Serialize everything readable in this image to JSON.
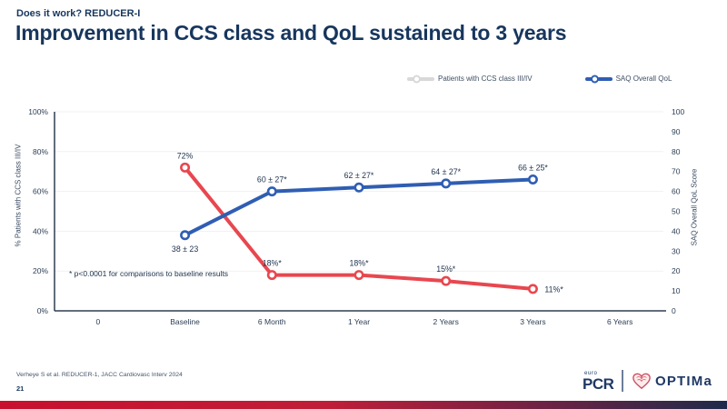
{
  "slide": {
    "kicker": "Does it work? REDUCER-I",
    "title": "Improvement in CCS class and QoL sustained to 3 years",
    "reference": "Verheye S et al. REDUCER-1, JACC Cardiovasc Interv 2024",
    "page_number": "21"
  },
  "colors": {
    "title_navy": "#17365D",
    "ccs_line_red": "#E8474F",
    "saq_line_blue": "#2F5EB3",
    "legend_gray": "#D8D8D8",
    "axis_line": "#2e3d52",
    "gridline": "#f1f1f1",
    "bar_gradient_left": "#C8102E",
    "bar_gradient_right": "#1E2A4A"
  },
  "logos": {
    "europcr_top": "euro",
    "europcr_main": "PCR",
    "optima": "OPTIMa"
  },
  "chart_data": {
    "type": "line",
    "title": "Improvement in CCS class and QoL sustained to 3 years",
    "categories": [
      "0",
      "Baseline",
      "6 Month",
      "1 Year",
      "2 Years",
      "3 Years",
      "6 Years"
    ],
    "left_axis": {
      "label": "% Patients with CCS class III/IV",
      "min": 0,
      "max": 100,
      "step": 20,
      "suffix": "%"
    },
    "right_axis": {
      "label": "SAQ Overall QoL Score",
      "min": 0,
      "max": 100,
      "step": 10,
      "suffix": ""
    },
    "grid": "horizontal-light",
    "legend_position": "top-right",
    "legend": [
      {
        "name": "Patients with CCS class III/IV",
        "color": "#D8D8D8"
      },
      {
        "name": "SAQ Overall QoL",
        "color": "#2F5EB3"
      }
    ],
    "annotation": "* p<0.0001 for comparisons to baseline results",
    "series": [
      {
        "name": "Patients with CCS class III/IV",
        "axis": "left",
        "color": "#E8474F",
        "x": [
          1,
          2,
          3,
          4,
          5
        ],
        "values": [
          72,
          18,
          18,
          15,
          11
        ],
        "labels": [
          "72%",
          "18%*",
          "18%*",
          "15%*",
          "11%*"
        ],
        "label_pos": [
          "above",
          "above",
          "above",
          "above",
          "right"
        ]
      },
      {
        "name": "SAQ Overall QoL",
        "axis": "right",
        "color": "#2F5EB3",
        "x": [
          1,
          2,
          3,
          4,
          5
        ],
        "values": [
          38,
          60,
          62,
          64,
          66
        ],
        "labels": [
          "38 ± 23",
          "60 ± 27*",
          "62 ± 27*",
          "64 ± 27*",
          "66 ± 25*"
        ],
        "label_pos": [
          "below",
          "above",
          "above",
          "above",
          "above"
        ]
      }
    ]
  }
}
